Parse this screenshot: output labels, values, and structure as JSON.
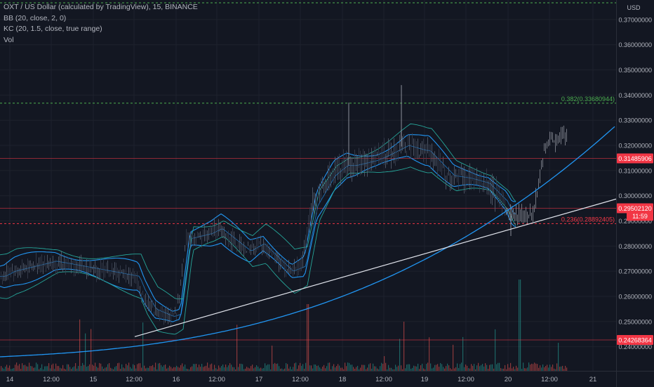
{
  "legend": {
    "symbol": "OXT / US Dollar (calculated by TradingView), 15, BINANCE",
    "bb": "BB (20, close, 2, 0)",
    "kc": "KC (20, 1.5, close, true range)",
    "vol": "Vol"
  },
  "price_axis": {
    "currency": "USD",
    "ticks": [
      "0.37000000",
      "0.36000000",
      "0.35000000",
      "0.34000000",
      "0.33000000",
      "0.32000000",
      "0.31000000",
      "0.30000000",
      "0.29000000",
      "0.28000000",
      "0.27000000",
      "0.26000000",
      "0.25000000",
      "0.24000000"
    ],
    "tags": [
      {
        "text": "0.31485906",
        "value": 0.31485906,
        "color": "#f23645"
      },
      {
        "text": "0.29502120",
        "value": 0.2950212,
        "color": "#f23645"
      },
      {
        "text": "11:59",
        "value": 0.292,
        "color": "#f23645"
      },
      {
        "text": "0.24268364",
        "value": 0.24268364,
        "color": "#f23645"
      }
    ]
  },
  "time_axis": {
    "labels": [
      "14",
      "12:00",
      "15",
      "12:00",
      "16",
      "12:00",
      "17",
      "12:00",
      "18",
      "12:00",
      "19",
      "12:00",
      "20",
      "12:00",
      "21"
    ]
  },
  "fib_lines": [
    {
      "label": "0.382(0.33680944)",
      "value": 0.33680944,
      "color": "#4caf50"
    },
    {
      "label": "0.236(0.28892405)",
      "value": 0.28892405,
      "color": "#f23645"
    }
  ],
  "colors": {
    "background": "#131722",
    "candle_up": "#5a6272",
    "candle_down": "#3a4050",
    "bb_bands": "#2196f3",
    "kc_bands": "#26a69a",
    "curve": "#2196f3",
    "trendline": "#e0e3eb",
    "fib_green": "#4caf50",
    "fib_red": "#f23645",
    "vol_up": "#26a69a",
    "vol_down": "#ef5350"
  },
  "chart_data": {
    "type": "line",
    "ylim": [
      0.236,
      0.375
    ],
    "y_scale": "linear",
    "x_day_labels": [
      "14",
      "15",
      "16",
      "17",
      "18",
      "19",
      "20",
      "21"
    ],
    "series": [
      {
        "values_by_day_label": {
          "14": 0.27,
          "14 12:00": 0.274,
          "15": 0.271,
          "15 12:00": 0.268,
          "16": 0.253,
          "16 12:00": 0.287,
          "17": 0.281,
          "17 12:00": 0.272,
          "18": 0.312,
          "18 12:00": 0.316,
          "19": 0.318,
          "19 12:00": 0.307,
          "20": 0.293,
          "20 12:00": 0.322
        }
      }
    ],
    "horizontal_levels": [
      0.31485906,
      0.2950212,
      0.24268364
    ],
    "fib_levels": [
      0.33680944,
      0.28892405
    ]
  }
}
